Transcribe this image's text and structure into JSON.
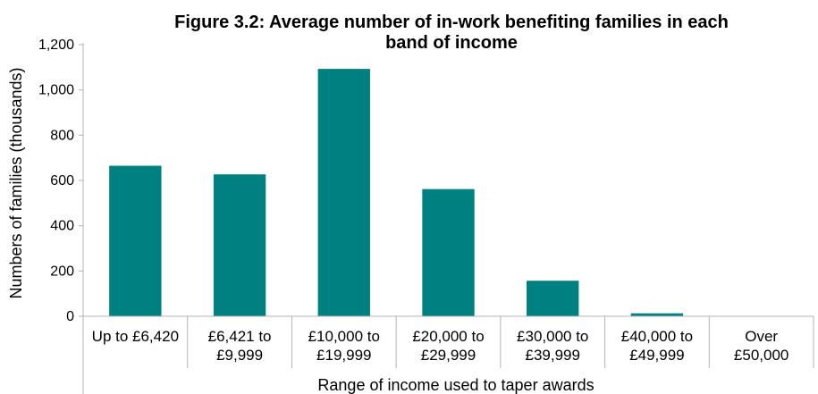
{
  "chart_data": {
    "type": "bar",
    "title_line1": "Figure 3.2:  Average number of in-work benefiting families in each",
    "title_line2": "band of income",
    "xlabel": "Range of income used to taper awards",
    "ylabel": "Numbers of families (thousands)",
    "ylim": [
      0,
      1200
    ],
    "yticks": [
      "0",
      "200",
      "400",
      "600",
      "800",
      "1,000",
      "1,200"
    ],
    "ytick_values": [
      0,
      200,
      400,
      600,
      800,
      1000,
      1200
    ],
    "categories": [
      [
        "Up to £6,420"
      ],
      [
        "£6,421 to",
        "£9,999"
      ],
      [
        "£10,000 to",
        "£19,999"
      ],
      [
        "£20,000 to",
        "£29,999"
      ],
      [
        "£30,000 to",
        "£39,999"
      ],
      [
        "£40,000 to",
        "£49,999"
      ],
      [
        "Over",
        "£50,000"
      ]
    ],
    "values": [
      665,
      627,
      1093,
      562,
      157,
      13,
      0
    ],
    "bar_color": "#008080",
    "grid": false
  }
}
